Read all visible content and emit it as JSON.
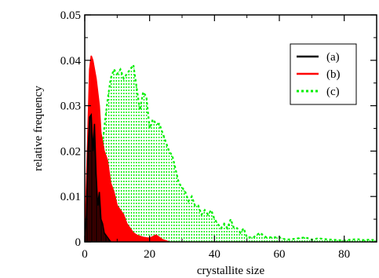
{
  "chart_data": {
    "type": "area",
    "title": "",
    "xlabel": "crystallite size",
    "ylabel": "relative frequency",
    "xlim": [
      0,
      90
    ],
    "ylim": [
      0,
      0.05
    ],
    "x_ticks": [
      0,
      20,
      40,
      60,
      80
    ],
    "x_tick_labels": [
      "0",
      "20",
      "40",
      "60",
      "80"
    ],
    "y_ticks": [
      0,
      0.01,
      0.02,
      0.03,
      0.04,
      0.05
    ],
    "y_tick_labels": [
      "0",
      "0.01",
      "0.02",
      "0.03",
      "0.04",
      "0.05"
    ],
    "grid": false,
    "legend_position": "top-right",
    "series": [
      {
        "name": "(a)",
        "color": "#000000",
        "line": "solid",
        "fill": "vertical-lines",
        "x": [
          0,
          0.5,
          1,
          1.5,
          2,
          2.5,
          3,
          3.5,
          4,
          4.5,
          5,
          5.5,
          6,
          7,
          8
        ],
        "y": [
          0,
          0.006,
          0.02,
          0.0275,
          0.028,
          0.02,
          0.026,
          0.015,
          0.008,
          0.011,
          0.005,
          0.004,
          0.002,
          0.001,
          0
        ]
      },
      {
        "name": "(b)",
        "color": "#ff0000",
        "line": "solid",
        "fill": "solid",
        "x": [
          0,
          1,
          1.5,
          2,
          2.5,
          3,
          3.5,
          4,
          4.5,
          5,
          6,
          7,
          8,
          9,
          10,
          11,
          12,
          13,
          14,
          15,
          16,
          18,
          20,
          22,
          24,
          26
        ],
        "y": [
          0,
          0.025,
          0.038,
          0.041,
          0.04,
          0.038,
          0.036,
          0.033,
          0.03,
          0.024,
          0.02,
          0.018,
          0.013,
          0.011,
          0.008,
          0.007,
          0.006,
          0.004,
          0.003,
          0.002,
          0.0015,
          0.001,
          0.0008,
          0.0015,
          0.0005,
          0
        ]
      },
      {
        "name": "(c)",
        "color": "#00ee00",
        "line": "dotted",
        "fill": "dotted-vertical-lines",
        "x": [
          2,
          3,
          4,
          5,
          6,
          7,
          8,
          9,
          10,
          11,
          12,
          13,
          14,
          15,
          16,
          17,
          18,
          19,
          20,
          21,
          22,
          23,
          24,
          25,
          26,
          27,
          28,
          29,
          30,
          31,
          32,
          33,
          34,
          35,
          36,
          37,
          38,
          39,
          40,
          41,
          42,
          43,
          44,
          45,
          46,
          47,
          48,
          49,
          50,
          52,
          54,
          56,
          58,
          60,
          62,
          64,
          66,
          68,
          70,
          72,
          74,
          76,
          78,
          80,
          82,
          84,
          86,
          88,
          90
        ],
        "y": [
          0,
          0.004,
          0.01,
          0.018,
          0.025,
          0.031,
          0.036,
          0.038,
          0.037,
          0.038,
          0.036,
          0.037,
          0.038,
          0.039,
          0.034,
          0.029,
          0.033,
          0.032,
          0.025,
          0.027,
          0.026,
          0.026,
          0.024,
          0.022,
          0.02,
          0.019,
          0.016,
          0.013,
          0.012,
          0.011,
          0.009,
          0.01,
          0.008,
          0.008,
          0.006,
          0.007,
          0.006,
          0.007,
          0.005,
          0.004,
          0.003,
          0.004,
          0.003,
          0.005,
          0.003,
          0.003,
          0.002,
          0.003,
          0.001,
          0.001,
          0.002,
          0.001,
          0.001,
          0.001,
          0.0005,
          0.0006,
          0.0008,
          0.001,
          0.0005,
          0.0008,
          0.0006,
          0.0005,
          0.0004,
          0.0003,
          0.0005,
          0.0006,
          0.0004,
          0.0005,
          0.0003
        ]
      }
    ]
  }
}
